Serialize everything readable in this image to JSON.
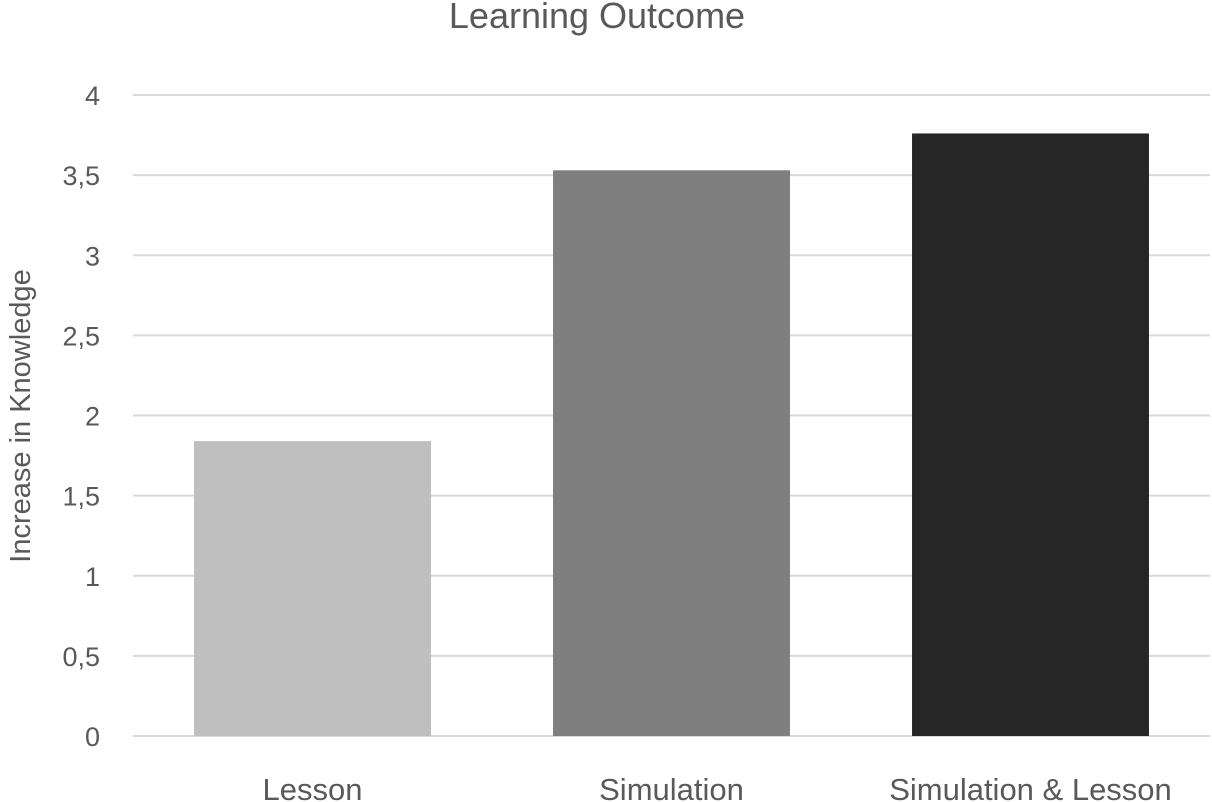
{
  "chart_data": {
    "type": "bar",
    "title": "Learning Outcome",
    "xlabel": "",
    "ylabel": "Increase in Knowledge",
    "categories": [
      "Lesson",
      "Simulation",
      "Simulation & Lesson"
    ],
    "values": [
      1.84,
      3.53,
      3.76
    ],
    "bar_colors": [
      "#bfbfbf",
      "#7f7f7f",
      "#262626"
    ],
    "ylim": [
      0,
      4
    ],
    "y_ticks": [
      0,
      0.5,
      1,
      1.5,
      2,
      2.5,
      3,
      3.5,
      4
    ],
    "y_tick_labels": [
      "0",
      "0,5",
      "1",
      "1,5",
      "2",
      "2,5",
      "3",
      "3,5",
      "4"
    ],
    "grid": true,
    "gridline_color": "#d9d9d9",
    "text_color": "#595959",
    "legend": "none"
  }
}
